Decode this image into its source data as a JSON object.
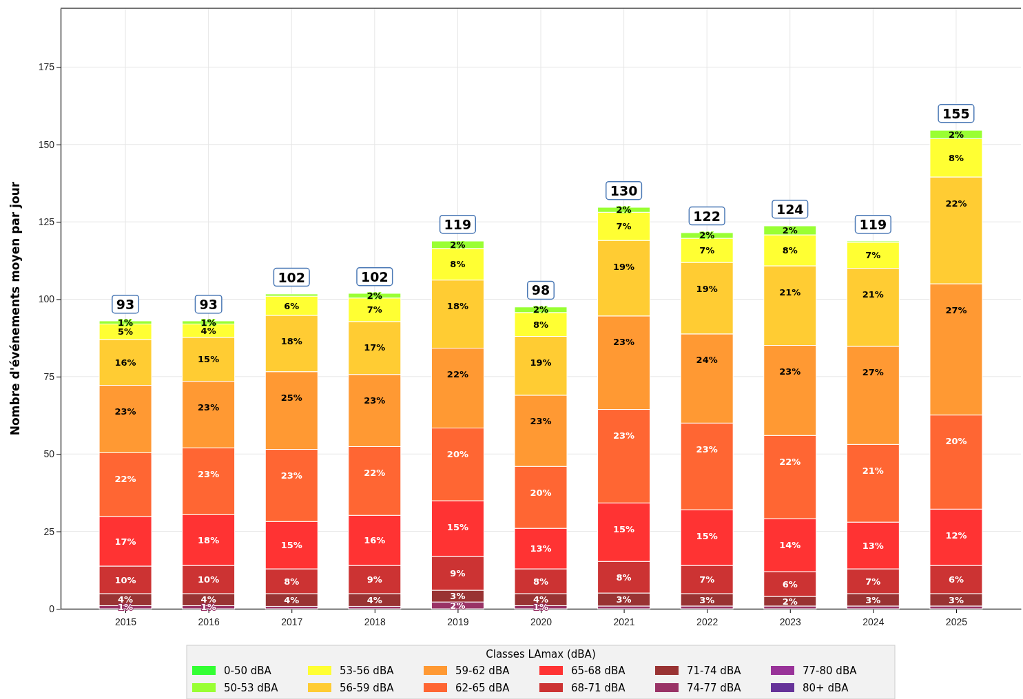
{
  "chart_data": {
    "type": "bar",
    "stacked": true,
    "ylabel": "Nombre d'événements moyen par jour",
    "legend_title": "Classes LAmax (dBA)",
    "legend": "bottom",
    "grid": true,
    "categories": [
      "2015",
      "2016",
      "2017",
      "2018",
      "2019",
      "2020",
      "2021",
      "2022",
      "2023",
      "2024",
      "2025"
    ],
    "ylim": [
      0,
      194
    ],
    "yticks": [
      0,
      25,
      50,
      75,
      100,
      125,
      150,
      175
    ],
    "totals": [
      "93",
      "93",
      "102",
      "102",
      "119",
      "98",
      "130",
      "122",
      "124",
      "119",
      "155"
    ],
    "series": [
      {
        "name": "80+ dBA",
        "color": "#663399",
        "values": [
          0,
          0,
          0,
          0,
          0,
          0,
          0,
          0,
          0,
          0,
          0
        ]
      },
      {
        "name": "77-80 dBA",
        "color": "#993399",
        "values": [
          0,
          0,
          0,
          0,
          0,
          0,
          0,
          0,
          0,
          0,
          0
        ]
      },
      {
        "name": "74-77 dBA",
        "color": "#993366",
        "values": [
          1,
          1,
          0.8,
          0.8,
          2.2,
          1,
          0.9,
          0.9,
          0.9,
          0.9,
          0.9
        ]
      },
      {
        "name": "71-74 dBA",
        "color": "#993333",
        "values": [
          3.9,
          3.9,
          4.1,
          4.1,
          3.8,
          3.9,
          4.2,
          4,
          3.1,
          4,
          4
        ]
      },
      {
        "name": "68-71 dBA",
        "color": "#cc3333",
        "values": [
          8.9,
          9.1,
          8,
          9.1,
          10.9,
          8,
          10.2,
          9.1,
          8,
          8,
          9.1
        ]
      },
      {
        "name": "65-68 dBA",
        "color": "#ff3333",
        "values": [
          16,
          16.4,
          15.3,
          16.2,
          18,
          13.1,
          18.9,
          18,
          17.1,
          15.1,
          18.2
        ]
      },
      {
        "name": "62-65 dBA",
        "color": "#ff6633",
        "values": [
          20.6,
          21.6,
          23.3,
          22.2,
          23.5,
          20,
          30.2,
          28,
          26.9,
          25.1,
          30.4
        ]
      },
      {
        "name": "59-62 dBA",
        "color": "#ff9933",
        "values": [
          21.8,
          21.5,
          25.1,
          23.3,
          25.8,
          23,
          30.2,
          28.8,
          29.1,
          31.7,
          42.4
        ]
      },
      {
        "name": "56-59 dBA",
        "color": "#ffcc33",
        "values": [
          14.8,
          14.2,
          18.2,
          17.1,
          22,
          19,
          24.4,
          23.1,
          25.7,
          25.2,
          34.5
        ]
      },
      {
        "name": "53-56 dBA",
        "color": "#ffff33",
        "values": [
          5,
          4.3,
          6.2,
          7.6,
          10.2,
          7.7,
          9.1,
          7.8,
          10,
          8.4,
          12.4
        ]
      },
      {
        "name": "50-53 dBA",
        "color": "#99ff33",
        "values": [
          1,
          1,
          0.7,
          1.5,
          2.4,
          1.8,
          1.6,
          1.8,
          2.9,
          0.4,
          2.7
        ]
      },
      {
        "name": "0-50 dBA",
        "color": "#33ff33",
        "values": [
          0,
          0,
          0,
          0,
          0,
          0,
          0,
          0,
          0,
          0,
          0
        ]
      }
    ],
    "annotations": [
      {
        "text": "1%",
        "x": "2015",
        "y": 1
      },
      {
        "text": "4%",
        "x": "2015",
        "y": 4.9
      },
      {
        "text": "10%",
        "x": "2015",
        "y": 13.8
      },
      {
        "text": "17%",
        "x": "2015",
        "y": 29.8
      },
      {
        "text": "22%",
        "x": "2015",
        "y": 50.4
      },
      {
        "text": "23%",
        "x": "2015",
        "y": 72.2
      },
      {
        "text": "16%",
        "x": "2015",
        "y": 87
      },
      {
        "text": "5%",
        "x": "2015",
        "y": 92
      },
      {
        "text": "1%",
        "x": "2015",
        "y": 93
      },
      {
        "text": "1%",
        "x": "2016",
        "y": 1
      },
      {
        "text": "4%",
        "x": "2016",
        "y": 4.9
      },
      {
        "text": "10%",
        "x": "2016",
        "y": 14
      },
      {
        "text": "18%",
        "x": "2016",
        "y": 30.4
      },
      {
        "text": "23%",
        "x": "2016",
        "y": 52
      },
      {
        "text": "23%",
        "x": "2016",
        "y": 73.5
      },
      {
        "text": "15%",
        "x": "2016",
        "y": 87.7
      },
      {
        "text": "4%",
        "x": "2016",
        "y": 92
      },
      {
        "text": "1%",
        "x": "2016",
        "y": 93
      },
      {
        "text": "4%",
        "x": "2017",
        "y": 4.9
      },
      {
        "text": "8%",
        "x": "2017",
        "y": 12.9
      },
      {
        "text": "15%",
        "x": "2017",
        "y": 28.2
      },
      {
        "text": "23%",
        "x": "2017",
        "y": 51.5
      },
      {
        "text": "25%",
        "x": "2017",
        "y": 76.6
      },
      {
        "text": "18%",
        "x": "2017",
        "y": 94.8
      },
      {
        "text": "6%",
        "x": "2017",
        "y": 101
      },
      {
        "text": "4%",
        "x": "2018",
        "y": 4.9
      },
      {
        "text": "9%",
        "x": "2018",
        "y": 14
      },
      {
        "text": "16%",
        "x": "2018",
        "y": 30.2
      },
      {
        "text": "22%",
        "x": "2018",
        "y": 52.4
      },
      {
        "text": "23%",
        "x": "2018",
        "y": 75.7
      },
      {
        "text": "17%",
        "x": "2018",
        "y": 92.8
      },
      {
        "text": "7%",
        "x": "2018",
        "y": 100.4
      },
      {
        "text": "2%",
        "x": "2018",
        "y": 101.9
      },
      {
        "text": "2%",
        "x": "2019",
        "y": 2.2
      },
      {
        "text": "3%",
        "x": "2019",
        "y": 6
      },
      {
        "text": "9%",
        "x": "2019",
        "y": 16.9
      },
      {
        "text": "15%",
        "x": "2019",
        "y": 34.9
      },
      {
        "text": "20%",
        "x": "2019",
        "y": 58.4
      },
      {
        "text": "22%",
        "x": "2019",
        "y": 84.2
      },
      {
        "text": "18%",
        "x": "2019",
        "y": 106.2
      },
      {
        "text": "8%",
        "x": "2019",
        "y": 116.4
      },
      {
        "text": "2%",
        "x": "2019",
        "y": 118.8
      },
      {
        "text": "1%",
        "x": "2020",
        "y": 1
      },
      {
        "text": "4%",
        "x": "2020",
        "y": 4.9
      },
      {
        "text": "8%",
        "x": "2020",
        "y": 12.9
      },
      {
        "text": "13%",
        "x": "2020",
        "y": 26
      },
      {
        "text": "20%",
        "x": "2020",
        "y": 46
      },
      {
        "text": "23%",
        "x": "2020",
        "y": 69
      },
      {
        "text": "19%",
        "x": "2020",
        "y": 88
      },
      {
        "text": "8%",
        "x": "2020",
        "y": 95.7
      },
      {
        "text": "2%",
        "x": "2020",
        "y": 97.5
      },
      {
        "text": "3%",
        "x": "2021",
        "y": 5.1
      },
      {
        "text": "8%",
        "x": "2021",
        "y": 15.3
      },
      {
        "text": "15%",
        "x": "2021",
        "y": 34.2
      },
      {
        "text": "23%",
        "x": "2021",
        "y": 64.4
      },
      {
        "text": "23%",
        "x": "2021",
        "y": 94.6
      },
      {
        "text": "19%",
        "x": "2021",
        "y": 119
      },
      {
        "text": "7%",
        "x": "2021",
        "y": 128.1
      },
      {
        "text": "2%",
        "x": "2021",
        "y": 129.7
      },
      {
        "text": "3%",
        "x": "2022",
        "y": 4.9
      },
      {
        "text": "7%",
        "x": "2022",
        "y": 14
      },
      {
        "text": "15%",
        "x": "2022",
        "y": 32
      },
      {
        "text": "23%",
        "x": "2022",
        "y": 60
      },
      {
        "text": "24%",
        "x": "2022",
        "y": 88.8
      },
      {
        "text": "19%",
        "x": "2022",
        "y": 111.9
      },
      {
        "text": "7%",
        "x": "2022",
        "y": 119.7
      },
      {
        "text": "2%",
        "x": "2022",
        "y": 121.5
      },
      {
        "text": "2%",
        "x": "2023",
        "y": 4
      },
      {
        "text": "6%",
        "x": "2023",
        "y": 12
      },
      {
        "text": "14%",
        "x": "2023",
        "y": 29.1
      },
      {
        "text": "22%",
        "x": "2023",
        "y": 56
      },
      {
        "text": "23%",
        "x": "2023",
        "y": 85.1
      },
      {
        "text": "21%",
        "x": "2023",
        "y": 110.8
      },
      {
        "text": "8%",
        "x": "2023",
        "y": 120.8
      },
      {
        "text": "2%",
        "x": "2023",
        "y": 123.7
      },
      {
        "text": "3%",
        "x": "2024",
        "y": 4.9
      },
      {
        "text": "7%",
        "x": "2024",
        "y": 12.9
      },
      {
        "text": "13%",
        "x": "2024",
        "y": 28
      },
      {
        "text": "21%",
        "x": "2024",
        "y": 53.1
      },
      {
        "text": "27%",
        "x": "2024",
        "y": 84.8
      },
      {
        "text": "21%",
        "x": "2024",
        "y": 110
      },
      {
        "text": "7%",
        "x": "2024",
        "y": 118.4
      },
      {
        "text": "3%",
        "x": "2025",
        "y": 4.9
      },
      {
        "text": "6%",
        "x": "2025",
        "y": 14
      },
      {
        "text": "12%",
        "x": "2025",
        "y": 32.2
      },
      {
        "text": "20%",
        "x": "2025",
        "y": 62.6
      },
      {
        "text": "27%",
        "x": "2025",
        "y": 105
      },
      {
        "text": "22%",
        "x": "2025",
        "y": 139.5
      },
      {
        "text": "8%",
        "x": "2025",
        "y": 151.9
      },
      {
        "text": "2%",
        "x": "2025",
        "y": 154.6
      }
    ]
  }
}
